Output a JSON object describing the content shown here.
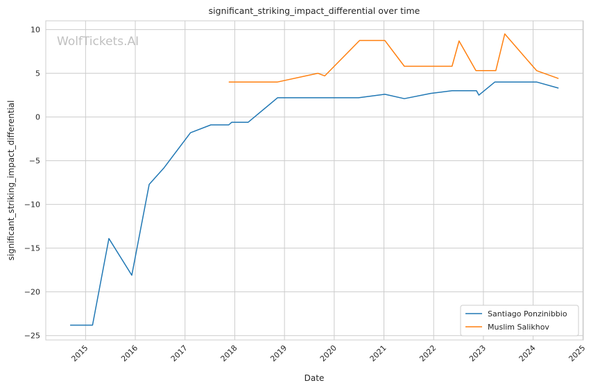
{
  "chart_data": {
    "type": "line",
    "title": "significant_striking_impact_differential over time",
    "xlabel": "Date",
    "ylabel": "significant_striking_impact_differential",
    "watermark": "WolfTickets.AI",
    "xlim": [
      2014.2,
      2025.01
    ],
    "ylim": [
      -25.5,
      11
    ],
    "x_ticks": [
      2015,
      2016,
      2017,
      2018,
      2019,
      2020,
      2021,
      2022,
      2023,
      2024,
      2025
    ],
    "x_tick_labels": [
      "2015",
      "2016",
      "2017",
      "2018",
      "2019",
      "2020",
      "2021",
      "2022",
      "2023",
      "2024",
      "2025"
    ],
    "y_ticks": [
      10,
      5,
      0,
      -5,
      -10,
      -15,
      -20,
      -25
    ],
    "y_tick_labels": [
      "10",
      "5",
      "0",
      "−5",
      "−10",
      "−15",
      "−20",
      "−25"
    ],
    "grid": true,
    "legend_position": "bottom-right",
    "series": [
      {
        "name": "Santiago Ponzinibbio",
        "color": "#1f77b4",
        "x": [
          2014.69,
          2015.14,
          2015.47,
          2015.93,
          2016.28,
          2016.58,
          2017.11,
          2017.52,
          2017.88,
          2017.94,
          2018.27,
          2018.86,
          2020.49,
          2021.02,
          2021.41,
          2021.94,
          2022.37,
          2022.86,
          2022.91,
          2023.23,
          2024.07,
          2024.51
        ],
        "y": [
          -23.8,
          -23.8,
          -13.9,
          -18.1,
          -7.7,
          -5.8,
          -1.8,
          -0.9,
          -0.9,
          -0.6,
          -0.6,
          2.2,
          2.2,
          2.6,
          2.1,
          2.7,
          3.0,
          3.0,
          2.5,
          4.0,
          4.0,
          3.3
        ]
      },
      {
        "name": "Muslim Salikhov",
        "color": "#ff7f0e",
        "x": [
          2017.88,
          2018.86,
          2019.67,
          2019.81,
          2020.51,
          2021.02,
          2021.41,
          2022.37,
          2022.51,
          2022.85,
          2023.25,
          2023.43,
          2024.07,
          2024.51
        ],
        "y": [
          4.0,
          4.0,
          5.0,
          4.7,
          8.75,
          8.75,
          5.8,
          5.8,
          8.7,
          5.3,
          5.3,
          9.5,
          5.3,
          4.4
        ]
      }
    ]
  }
}
